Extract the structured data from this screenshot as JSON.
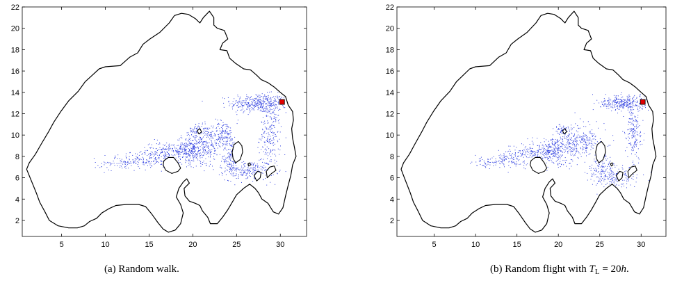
{
  "chart_data": [
    {
      "type": "scatter",
      "panel": "(a)",
      "caption": "(a)  Random walk.",
      "xlim": [
        0.5,
        33
      ],
      "ylim": [
        0.5,
        22
      ],
      "xticks": [
        5,
        10,
        15,
        20,
        25,
        30
      ],
      "yticks": [
        2,
        4,
        6,
        8,
        10,
        12,
        14,
        16,
        18,
        20,
        22
      ],
      "source_marker": {
        "x": 30.2,
        "y": 13.1,
        "color": "#e00000"
      },
      "particle_color": "#2f3fe0",
      "boundary_color": "#000000",
      "particle_clusters": [
        {
          "cx": 27.5,
          "cy": 13.0,
          "sx": 1.6,
          "sy": 0.45,
          "n": 380
        },
        {
          "cx": 28.8,
          "cy": 10.0,
          "sx": 0.6,
          "sy": 1.6,
          "n": 220
        },
        {
          "cx": 26.5,
          "cy": 6.7,
          "sx": 1.4,
          "sy": 0.45,
          "n": 200
        },
        {
          "cx": 24.3,
          "cy": 8.0,
          "sx": 0.5,
          "sy": 1.0,
          "n": 170
        },
        {
          "cx": 23.5,
          "cy": 10.2,
          "sx": 0.6,
          "sy": 0.6,
          "n": 120
        },
        {
          "cx": 21.6,
          "cy": 9.2,
          "sx": 0.9,
          "sy": 0.9,
          "n": 230
        },
        {
          "cx": 19.6,
          "cy": 8.7,
          "sx": 0.8,
          "sy": 0.7,
          "n": 230
        },
        {
          "cx": 17.3,
          "cy": 8.5,
          "sx": 1.5,
          "sy": 0.45,
          "n": 200
        },
        {
          "cx": 14.3,
          "cy": 7.7,
          "sx": 1.6,
          "sy": 0.4,
          "n": 140
        },
        {
          "cx": 11.5,
          "cy": 7.3,
          "sx": 1.4,
          "sy": 0.3,
          "n": 60
        },
        {
          "cx": 20.6,
          "cy": 10.5,
          "sx": 0.5,
          "sy": 0.3,
          "n": 60
        }
      ]
    },
    {
      "type": "scatter",
      "panel": "(b)",
      "caption_prefix": "(b)  Random flight with ",
      "caption_var": "T",
      "caption_sub": "L",
      "caption_suffix": " = 20",
      "caption_unit": "h",
      "caption_end": ".",
      "xlim": [
        0.5,
        33
      ],
      "ylim": [
        0.5,
        22
      ],
      "xticks": [
        5,
        10,
        15,
        20,
        25,
        30
      ],
      "yticks": [
        2,
        4,
        6,
        8,
        10,
        12,
        14,
        16,
        18,
        20,
        22
      ],
      "source_marker": {
        "x": 30.2,
        "y": 13.1,
        "color": "#e00000"
      },
      "particle_color": "#2f3fe0",
      "boundary_color": "#000000",
      "particle_clusters": [
        {
          "cx": 27.8,
          "cy": 13.0,
          "sx": 1.4,
          "sy": 0.35,
          "n": 300
        },
        {
          "cx": 29.0,
          "cy": 10.3,
          "sx": 0.5,
          "sy": 1.5,
          "n": 180
        },
        {
          "cx": 27.0,
          "cy": 6.2,
          "sx": 1.6,
          "sy": 0.5,
          "n": 180
        },
        {
          "cx": 25.2,
          "cy": 7.5,
          "sx": 0.6,
          "sy": 1.1,
          "n": 150
        },
        {
          "cx": 23.5,
          "cy": 9.6,
          "sx": 0.6,
          "sy": 0.7,
          "n": 100
        },
        {
          "cx": 21.5,
          "cy": 9.2,
          "sx": 0.9,
          "sy": 0.9,
          "n": 200
        },
        {
          "cx": 19.5,
          "cy": 8.6,
          "sx": 0.8,
          "sy": 0.7,
          "n": 200
        },
        {
          "cx": 17.0,
          "cy": 8.4,
          "sx": 1.5,
          "sy": 0.45,
          "n": 170
        },
        {
          "cx": 14.0,
          "cy": 7.7,
          "sx": 1.5,
          "sy": 0.4,
          "n": 110
        },
        {
          "cx": 11.3,
          "cy": 7.3,
          "sx": 1.2,
          "sy": 0.3,
          "n": 45
        },
        {
          "cx": 20.6,
          "cy": 10.5,
          "sx": 0.5,
          "sy": 0.3,
          "n": 50
        }
      ]
    }
  ],
  "domain_boundary": {
    "outer": [
      [
        30.0,
        14.0
      ],
      [
        30.6,
        13.6
      ],
      [
        30.9,
        12.8
      ],
      [
        31.4,
        12.2
      ],
      [
        31.5,
        11.4
      ],
      [
        31.3,
        10.6
      ],
      [
        31.4,
        9.7
      ],
      [
        31.6,
        8.9
      ],
      [
        31.8,
        8.0
      ],
      [
        31.4,
        7.2
      ],
      [
        31.2,
        6.2
      ],
      [
        30.9,
        5.3
      ],
      [
        30.6,
        4.3
      ],
      [
        30.3,
        3.2
      ],
      [
        29.8,
        2.6
      ],
      [
        29.2,
        2.8
      ],
      [
        28.6,
        3.6
      ],
      [
        27.9,
        4.0
      ],
      [
        27.5,
        4.6
      ],
      [
        27.1,
        5.0
      ],
      [
        26.5,
        5.4
      ],
      [
        25.8,
        5.0
      ],
      [
        25.0,
        4.4
      ],
      [
        24.5,
        3.7
      ],
      [
        24.0,
        3.0
      ],
      [
        23.4,
        2.3
      ],
      [
        22.8,
        1.7
      ],
      [
        22.0,
        1.7
      ],
      [
        21.7,
        2.3
      ],
      [
        21.1,
        2.9
      ],
      [
        20.8,
        3.4
      ],
      [
        20.3,
        3.6
      ],
      [
        19.6,
        3.8
      ],
      [
        19.1,
        4.3
      ],
      [
        19.0,
        5.0
      ],
      [
        19.6,
        5.5
      ],
      [
        19.3,
        5.9
      ],
      [
        18.9,
        5.6
      ],
      [
        18.4,
        5.0
      ],
      [
        18.1,
        4.2
      ],
      [
        18.6,
        3.5
      ],
      [
        18.9,
        2.7
      ],
      [
        18.6,
        1.7
      ],
      [
        18.0,
        1.1
      ],
      [
        17.2,
        0.9
      ],
      [
        16.6,
        1.2
      ],
      [
        16.0,
        1.8
      ],
      [
        15.3,
        2.6
      ],
      [
        14.6,
        3.3
      ],
      [
        13.8,
        3.5
      ],
      [
        12.4,
        3.5
      ],
      [
        11.2,
        3.4
      ],
      [
        10.4,
        3.1
      ],
      [
        9.6,
        2.7
      ],
      [
        9.0,
        2.2
      ],
      [
        8.2,
        1.9
      ],
      [
        7.6,
        1.5
      ],
      [
        6.8,
        1.3
      ],
      [
        5.8,
        1.3
      ],
      [
        4.6,
        1.5
      ],
      [
        3.6,
        2.0
      ],
      [
        3.1,
        2.8
      ],
      [
        2.5,
        3.7
      ],
      [
        2.1,
        4.6
      ],
      [
        1.7,
        5.4
      ],
      [
        1.4,
        6.0
      ],
      [
        1.0,
        6.8
      ],
      [
        1.3,
        7.4
      ],
      [
        2.0,
        8.2
      ],
      [
        2.7,
        9.2
      ],
      [
        3.5,
        10.3
      ],
      [
        4.1,
        11.2
      ],
      [
        4.9,
        12.2
      ],
      [
        5.8,
        13.2
      ],
      [
        6.9,
        14.1
      ],
      [
        7.7,
        15.0
      ],
      [
        8.5,
        15.6
      ],
      [
        9.3,
        16.2
      ],
      [
        10.0,
        16.4
      ],
      [
        11.7,
        16.5
      ],
      [
        12.8,
        17.3
      ],
      [
        13.7,
        17.7
      ],
      [
        14.3,
        18.5
      ],
      [
        15.1,
        19.0
      ],
      [
        16.2,
        19.6
      ],
      [
        17.3,
        20.5
      ],
      [
        17.9,
        21.2
      ],
      [
        18.7,
        21.4
      ],
      [
        19.5,
        21.3
      ],
      [
        20.3,
        20.9
      ],
      [
        20.8,
        20.5
      ],
      [
        21.2,
        21.0
      ],
      [
        21.9,
        21.6
      ],
      [
        22.4,
        21.0
      ],
      [
        22.4,
        20.3
      ],
      [
        22.8,
        20.0
      ],
      [
        23.6,
        19.8
      ],
      [
        24.0,
        19.0
      ],
      [
        23.4,
        18.6
      ],
      [
        23.1,
        18.0
      ],
      [
        23.9,
        17.9
      ],
      [
        24.2,
        17.2
      ],
      [
        24.9,
        16.7
      ],
      [
        25.8,
        16.2
      ],
      [
        26.6,
        16.1
      ],
      [
        27.3,
        15.6
      ],
      [
        27.8,
        15.2
      ],
      [
        28.6,
        14.9
      ],
      [
        29.3,
        14.5
      ],
      [
        30.0,
        14.0
      ]
    ],
    "islands": [
      [
        [
          16.7,
          7.6
        ],
        [
          17.2,
          7.9
        ],
        [
          17.8,
          7.9
        ],
        [
          18.3,
          7.4
        ],
        [
          18.6,
          6.9
        ],
        [
          18.3,
          6.6
        ],
        [
          17.6,
          6.4
        ],
        [
          16.9,
          6.7
        ],
        [
          16.6,
          7.2
        ],
        [
          16.7,
          7.6
        ]
      ],
      [
        [
          24.9,
          7.4
        ],
        [
          25.4,
          7.7
        ],
        [
          25.7,
          8.4
        ],
        [
          25.6,
          9.0
        ],
        [
          25.2,
          9.4
        ],
        [
          24.7,
          9.1
        ],
        [
          24.5,
          8.4
        ],
        [
          24.6,
          7.8
        ],
        [
          24.9,
          7.4
        ]
      ],
      [
        [
          28.5,
          6.0
        ],
        [
          29.0,
          6.4
        ],
        [
          29.5,
          6.7
        ],
        [
          29.3,
          7.1
        ],
        [
          28.8,
          7.0
        ],
        [
          28.4,
          6.6
        ],
        [
          28.5,
          6.0
        ]
      ],
      [
        [
          27.3,
          5.7
        ],
        [
          27.7,
          6.0
        ],
        [
          27.8,
          6.5
        ],
        [
          27.4,
          6.6
        ],
        [
          27.0,
          6.2
        ],
        [
          27.3,
          5.7
        ]
      ],
      [
        [
          20.5,
          10.4
        ],
        [
          20.8,
          10.6
        ],
        [
          21.0,
          10.3
        ],
        [
          20.7,
          10.1
        ],
        [
          20.5,
          10.4
        ]
      ],
      [
        [
          26.3,
          7.3
        ],
        [
          26.5,
          7.4
        ],
        [
          26.6,
          7.2
        ],
        [
          26.4,
          7.1
        ],
        [
          26.3,
          7.3
        ]
      ]
    ]
  }
}
